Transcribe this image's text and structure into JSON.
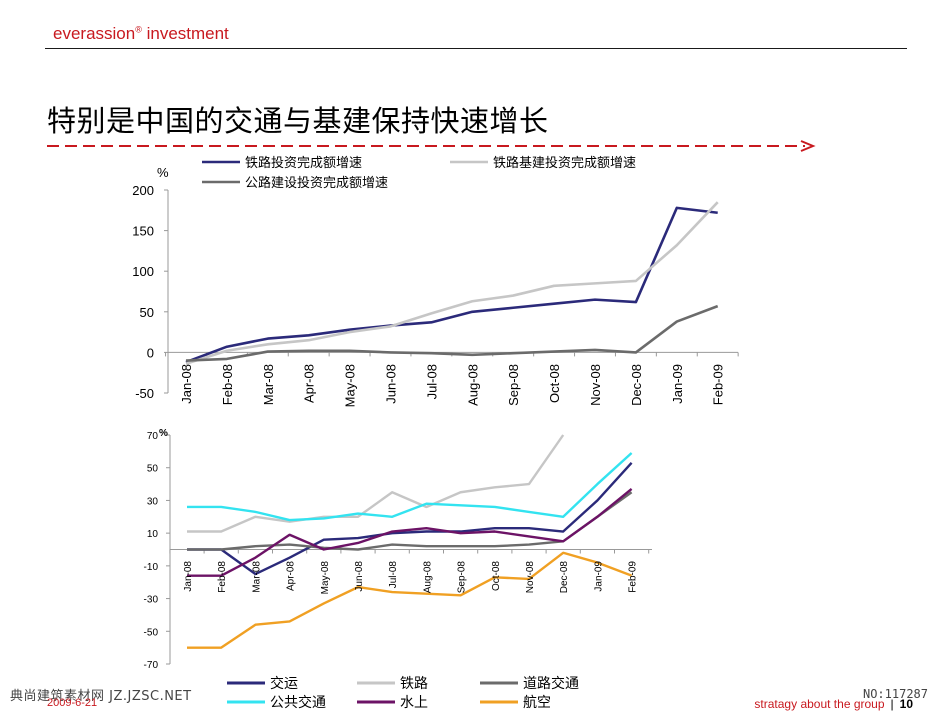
{
  "header": {
    "brand": "everassion",
    "brand_sup": "®",
    "brand_suffix": " investment",
    "title": "特别是中国的交通与基建保持快速增长"
  },
  "footer": {
    "date": "2009-6-21",
    "tagline": "stratagy about the group",
    "separator": "|",
    "page": "10",
    "watermark_left": "典尚建筑素材网 JZ.JZSC.NET",
    "watermark_right": "NO:117287"
  },
  "colors": {
    "brand_red": "#c8191f",
    "navy": "#2b2a7a",
    "light_gray": "#c6c6c6",
    "dark_gray": "#6b6b6b",
    "cyan": "#33e3f0",
    "purple": "#6c1366",
    "orange": "#f0a023"
  },
  "chart_data": [
    {
      "type": "line",
      "unit": "%",
      "categories": [
        "Jan-08",
        "Feb-08",
        "Mar-08",
        "Apr-08",
        "May-08",
        "Jun-08",
        "Jul-08",
        "Aug-08",
        "Sep-08",
        "Oct-08",
        "Nov-08",
        "Dec-08",
        "Jan-09",
        "Feb-09"
      ],
      "ylim": [
        -50,
        200
      ],
      "yticks": [
        "200",
        "150",
        "100",
        "50",
        "0",
        "-50"
      ],
      "series": [
        {
          "name": "铁路投资完成额增速",
          "color": "#2b2a7a",
          "values": [
            -12,
            7,
            17,
            21,
            28,
            33,
            37,
            50,
            55,
            60,
            65,
            62,
            178,
            172
          ]
        },
        {
          "name": "铁路基建投资完成额增速",
          "color": "#c6c6c6",
          "values": [
            -14,
            2,
            10,
            15,
            25,
            32,
            48,
            63,
            70,
            82,
            85,
            88,
            132,
            185
          ]
        },
        {
          "name": "公路建设投资完成额增速",
          "color": "#6b6b6b",
          "values": [
            -10,
            -8,
            1,
            2,
            2,
            0,
            -1,
            -3,
            -1,
            1,
            3,
            0,
            38,
            57
          ]
        }
      ],
      "legend_position": "top"
    },
    {
      "type": "line",
      "unit": "%",
      "categories": [
        "Jan-08",
        "Feb-08",
        "Mar-08",
        "Apr-08",
        "May-08",
        "Jun-08",
        "Jul-08",
        "Aug-08",
        "Sep-08",
        "Oct-08",
        "Nov-08",
        "Dec-08",
        "Jan-09",
        "Feb-09"
      ],
      "ylim": [
        -70,
        70
      ],
      "yticks": [
        "70",
        "50",
        "30",
        "10",
        "-10",
        "-30",
        "-50",
        "-70"
      ],
      "series": [
        {
          "name": "交运",
          "color": "#2b2a7a",
          "values": [
            0,
            0,
            -15,
            -5,
            6,
            7,
            10,
            11,
            11,
            13,
            13,
            11,
            30,
            53
          ]
        },
        {
          "name": "铁路",
          "color": "#c6c6c6",
          "values": [
            11,
            11,
            20,
            17,
            20,
            20,
            35,
            26,
            35,
            38,
            40,
            70,
            null,
            null
          ]
        },
        {
          "name": "道路交通",
          "color": "#6b6b6b",
          "values": [
            0,
            0,
            2,
            3,
            1,
            0,
            3,
            2,
            2,
            2,
            3,
            5,
            20,
            35
          ]
        },
        {
          "name": "公共交通",
          "color": "#33e3f0",
          "values": [
            26,
            26,
            23,
            18,
            19,
            22,
            20,
            28,
            27,
            26,
            23,
            20,
            40,
            59
          ]
        },
        {
          "name": "水上",
          "color": "#6c1366",
          "values": [
            -16,
            -16,
            -5,
            9,
            0,
            4,
            11,
            13,
            10,
            11,
            8,
            5,
            20,
            37
          ]
        },
        {
          "name": "航空",
          "color": "#f0a023",
          "values": [
            -60,
            -60,
            -46,
            -44,
            -33,
            -23,
            -26,
            -27,
            -28,
            -17,
            -18,
            -2,
            -8,
            -16
          ]
        }
      ],
      "legend_position": "bottom"
    }
  ]
}
